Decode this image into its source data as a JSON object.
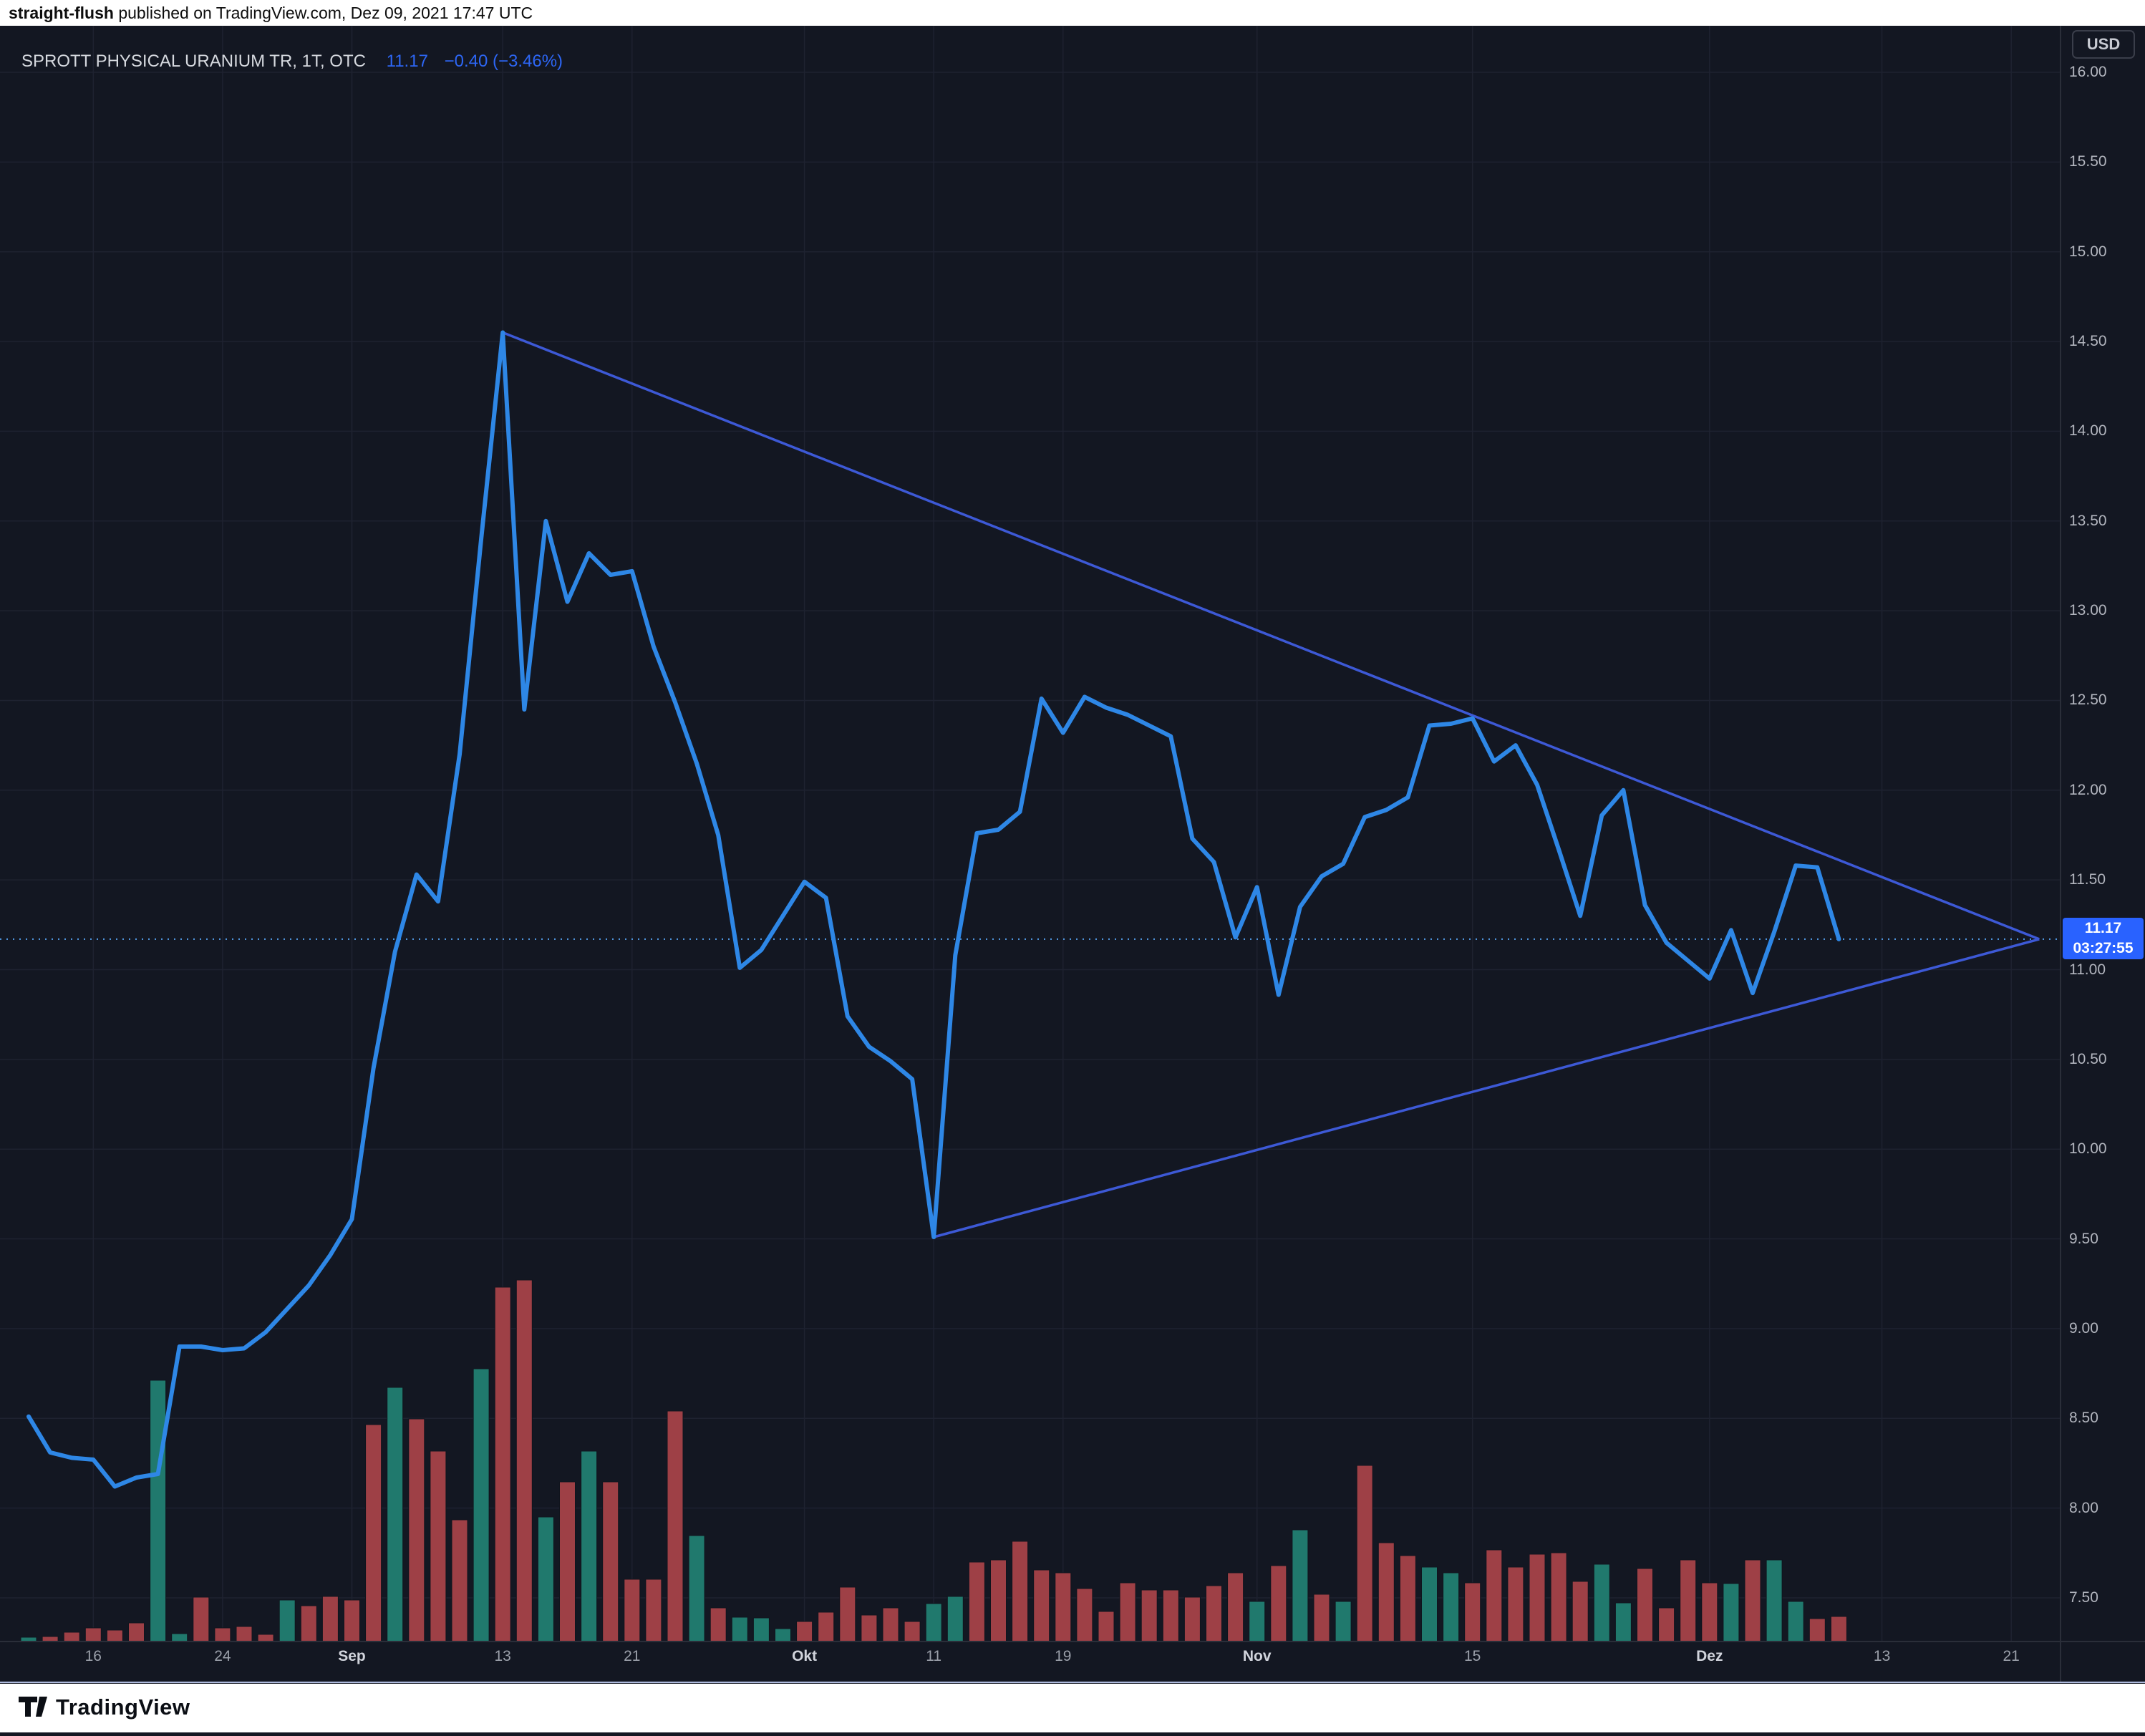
{
  "attribution": {
    "author": "straight-flush",
    "rest": " published on TradingView.com, Dez 09, 2021 17:47 UTC"
  },
  "legend": {
    "title": "SPROTT PHYSICAL URANIUM TR, 1T, OTC",
    "value": "11.17",
    "change": "−0.40 (−3.46%)"
  },
  "price_axis": {
    "currency": "USD",
    "labels": [
      16.0,
      15.5,
      15.0,
      14.5,
      14.0,
      13.5,
      13.0,
      12.5,
      12.0,
      11.5,
      11.0,
      10.5,
      10.0,
      9.5,
      9.0,
      8.5,
      8.0,
      7.5
    ],
    "current": {
      "price": "11.17",
      "countdown": "03:27:55"
    }
  },
  "time_axis": {
    "ticks": [
      {
        "label": "16",
        "index": 3,
        "major": false
      },
      {
        "label": "24",
        "index": 9,
        "major": false
      },
      {
        "label": "Sep",
        "index": 15,
        "major": true
      },
      {
        "label": "13",
        "index": 22,
        "major": false
      },
      {
        "label": "21",
        "index": 28,
        "major": false
      },
      {
        "label": "Okt",
        "index": 36,
        "major": true
      },
      {
        "label": "11",
        "index": 42,
        "major": false
      },
      {
        "label": "19",
        "index": 48,
        "major": false
      },
      {
        "label": "Nov",
        "index": 57,
        "major": true
      },
      {
        "label": "15",
        "index": 67,
        "major": false
      },
      {
        "label": "Dez",
        "index": 78,
        "major": true
      },
      {
        "label": "13",
        "index": 86,
        "major": false
      },
      {
        "label": "21",
        "index": 92,
        "major": false
      }
    ]
  },
  "footer": {
    "brand": "TradingView"
  },
  "colors": {
    "bg": "#131722",
    "grid": "#1e2230",
    "border": "#2a2e39",
    "line": "#2e87e6",
    "trend": "#3d59d6",
    "dotted": "#55a1ef",
    "label_bg": "#2962ff",
    "vol_up": "#20796d",
    "vol_down": "#9e4046",
    "axis_text": "#b2b5be"
  },
  "chart_data": {
    "type": "line",
    "title": "SPROTT PHYSICAL URANIUM TR, 1T, OTC",
    "ylabel": "USD",
    "ylim": [
      7.2,
      16.1
    ],
    "grid": true,
    "current_price": 11.17,
    "previous_close": 11.57,
    "change": -0.4,
    "change_pct": -3.46,
    "trendlines": [
      {
        "name": "descending-resistance",
        "from": {
          "index": 22,
          "price": 14.55
        },
        "to": {
          "index": 93.3,
          "price": 11.17
        }
      },
      {
        "name": "ascending-support",
        "from": {
          "index": 42,
          "price": 9.51
        },
        "to": {
          "index": 93.3,
          "price": 11.17
        }
      }
    ],
    "days": [
      {
        "d": "Aug 11",
        "close": 8.51,
        "vol": 6,
        "dir": "up"
      },
      {
        "d": "Aug 12",
        "close": 8.31,
        "vol": 7,
        "dir": "down"
      },
      {
        "d": "Aug 13",
        "close": 8.28,
        "vol": 13,
        "dir": "down"
      },
      {
        "d": "Aug 16",
        "close": 8.27,
        "vol": 19,
        "dir": "down"
      },
      {
        "d": "Aug 17",
        "close": 8.12,
        "vol": 16,
        "dir": "down"
      },
      {
        "d": "Aug 18",
        "close": 8.17,
        "vol": 26,
        "dir": "down"
      },
      {
        "d": "Aug 19",
        "close": 8.19,
        "vol": 365,
        "dir": "up"
      },
      {
        "d": "Aug 20",
        "close": 8.9,
        "vol": 11,
        "dir": "up"
      },
      {
        "d": "Aug 23",
        "close": 8.9,
        "vol": 62,
        "dir": "down"
      },
      {
        "d": "Aug 24",
        "close": 8.88,
        "vol": 19,
        "dir": "down"
      },
      {
        "d": "Aug 25",
        "close": 8.89,
        "vol": 21,
        "dir": "down"
      },
      {
        "d": "Aug 26",
        "close": 8.98,
        "vol": 10,
        "dir": "down"
      },
      {
        "d": "Aug 27",
        "close": 9.11,
        "vol": 58,
        "dir": "up"
      },
      {
        "d": "Aug 30",
        "close": 9.24,
        "vol": 50,
        "dir": "down"
      },
      {
        "d": "Aug 31",
        "close": 9.41,
        "vol": 63,
        "dir": "down"
      },
      {
        "d": "Sep 1",
        "close": 9.61,
        "vol": 58,
        "dir": "down"
      },
      {
        "d": "Sep 2",
        "close": 10.45,
        "vol": 303,
        "dir": "down"
      },
      {
        "d": "Sep 3",
        "close": 11.1,
        "vol": 355,
        "dir": "up"
      },
      {
        "d": "Sep 7",
        "close": 11.53,
        "vol": 311,
        "dir": "down"
      },
      {
        "d": "Sep 8",
        "close": 11.38,
        "vol": 266,
        "dir": "down"
      },
      {
        "d": "Sep 9",
        "close": 12.2,
        "vol": 170,
        "dir": "down"
      },
      {
        "d": "Sep 10",
        "close": 13.4,
        "vol": 381,
        "dir": "up"
      },
      {
        "d": "Sep 13",
        "close": 14.55,
        "vol": 495,
        "dir": "down"
      },
      {
        "d": "Sep 14",
        "close": 12.45,
        "vol": 505,
        "dir": "down"
      },
      {
        "d": "Sep 15",
        "close": 13.5,
        "vol": 174,
        "dir": "up"
      },
      {
        "d": "Sep 16",
        "close": 13.05,
        "vol": 223,
        "dir": "down"
      },
      {
        "d": "Sep 17",
        "close": 13.32,
        "vol": 266,
        "dir": "up"
      },
      {
        "d": "Sep 20",
        "close": 13.2,
        "vol": 223,
        "dir": "down"
      },
      {
        "d": "Sep 21",
        "close": 13.22,
        "vol": 87,
        "dir": "down"
      },
      {
        "d": "Sep 22",
        "close": 12.8,
        "vol": 87,
        "dir": "down"
      },
      {
        "d": "Sep 23",
        "close": 12.49,
        "vol": 322,
        "dir": "down"
      },
      {
        "d": "Sep 24",
        "close": 12.15,
        "vol": 148,
        "dir": "up"
      },
      {
        "d": "Sep 27",
        "close": 11.75,
        "vol": 47,
        "dir": "down"
      },
      {
        "d": "Sep 28",
        "close": 11.01,
        "vol": 34,
        "dir": "up"
      },
      {
        "d": "Sep 29",
        "close": 11.11,
        "vol": 33,
        "dir": "up"
      },
      {
        "d": "Sep 30",
        "close": 11.3,
        "vol": 18,
        "dir": "up"
      },
      {
        "d": "Okt 1",
        "close": 11.49,
        "vol": 28,
        "dir": "down"
      },
      {
        "d": "Okt 4",
        "close": 11.4,
        "vol": 41,
        "dir": "down"
      },
      {
        "d": "Okt 5",
        "close": 10.74,
        "vol": 76,
        "dir": "down"
      },
      {
        "d": "Okt 6",
        "close": 10.57,
        "vol": 37,
        "dir": "down"
      },
      {
        "d": "Okt 7",
        "close": 10.49,
        "vol": 47,
        "dir": "down"
      },
      {
        "d": "Okt 8",
        "close": 10.39,
        "vol": 28,
        "dir": "down"
      },
      {
        "d": "Okt 11",
        "close": 9.51,
        "vol": 53,
        "dir": "up"
      },
      {
        "d": "Okt 12",
        "close": 11.08,
        "vol": 63,
        "dir": "up"
      },
      {
        "d": "Okt 13",
        "close": 11.76,
        "vol": 111,
        "dir": "down"
      },
      {
        "d": "Okt 14",
        "close": 11.78,
        "vol": 114,
        "dir": "down"
      },
      {
        "d": "Okt 15",
        "close": 11.88,
        "vol": 140,
        "dir": "down"
      },
      {
        "d": "Okt 18",
        "close": 12.51,
        "vol": 100,
        "dir": "down"
      },
      {
        "d": "Okt 19",
        "close": 12.32,
        "vol": 96,
        "dir": "down"
      },
      {
        "d": "Okt 20",
        "close": 12.52,
        "vol": 74,
        "dir": "down"
      },
      {
        "d": "Okt 21",
        "close": 12.46,
        "vol": 42,
        "dir": "down"
      },
      {
        "d": "Okt 22",
        "close": 12.42,
        "vol": 82,
        "dir": "down"
      },
      {
        "d": "Okt 25",
        "close": 12.36,
        "vol": 72,
        "dir": "down"
      },
      {
        "d": "Okt 26",
        "close": 12.3,
        "vol": 72,
        "dir": "down"
      },
      {
        "d": "Okt 27",
        "close": 11.73,
        "vol": 62,
        "dir": "down"
      },
      {
        "d": "Okt 28",
        "close": 11.6,
        "vol": 78,
        "dir": "down"
      },
      {
        "d": "Okt 29",
        "close": 11.18,
        "vol": 96,
        "dir": "down"
      },
      {
        "d": "Nov 1",
        "close": 11.46,
        "vol": 56,
        "dir": "up"
      },
      {
        "d": "Nov 2",
        "close": 10.86,
        "vol": 106,
        "dir": "down"
      },
      {
        "d": "Nov 3",
        "close": 11.35,
        "vol": 156,
        "dir": "up"
      },
      {
        "d": "Nov 4",
        "close": 11.52,
        "vol": 66,
        "dir": "down"
      },
      {
        "d": "Nov 5",
        "close": 11.59,
        "vol": 56,
        "dir": "up"
      },
      {
        "d": "Nov 8",
        "close": 11.85,
        "vol": 246,
        "dir": "down"
      },
      {
        "d": "Nov 9",
        "close": 11.89,
        "vol": 138,
        "dir": "down"
      },
      {
        "d": "Nov 10",
        "close": 11.96,
        "vol": 120,
        "dir": "down"
      },
      {
        "d": "Nov 11",
        "close": 12.36,
        "vol": 104,
        "dir": "up"
      },
      {
        "d": "Nov 12",
        "close": 12.37,
        "vol": 96,
        "dir": "up"
      },
      {
        "d": "Nov 15",
        "close": 12.4,
        "vol": 82,
        "dir": "down"
      },
      {
        "d": "Nov 16",
        "close": 12.16,
        "vol": 128,
        "dir": "down"
      },
      {
        "d": "Nov 17",
        "close": 12.25,
        "vol": 104,
        "dir": "down"
      },
      {
        "d": "Nov 18",
        "close": 12.03,
        "vol": 122,
        "dir": "down"
      },
      {
        "d": "Nov 19",
        "close": 11.67,
        "vol": 124,
        "dir": "down"
      },
      {
        "d": "Nov 22",
        "close": 11.3,
        "vol": 84,
        "dir": "down"
      },
      {
        "d": "Nov 23",
        "close": 11.86,
        "vol": 108,
        "dir": "up"
      },
      {
        "d": "Nov 24",
        "close": 12.0,
        "vol": 54,
        "dir": "up"
      },
      {
        "d": "Nov 26",
        "close": 11.36,
        "vol": 102,
        "dir": "down"
      },
      {
        "d": "Nov 29",
        "close": 11.15,
        "vol": 47,
        "dir": "down"
      },
      {
        "d": "Nov 30",
        "close": 11.05,
        "vol": 114,
        "dir": "down"
      },
      {
        "d": "Dez 1",
        "close": 10.95,
        "vol": 82,
        "dir": "down"
      },
      {
        "d": "Dez 2",
        "close": 11.22,
        "vol": 81,
        "dir": "up"
      },
      {
        "d": "Dez 3",
        "close": 10.87,
        "vol": 114,
        "dir": "down"
      },
      {
        "d": "Dez 6",
        "close": 11.21,
        "vol": 114,
        "dir": "up"
      },
      {
        "d": "Dez 7",
        "close": 11.58,
        "vol": 56,
        "dir": "up"
      },
      {
        "d": "Dez 8",
        "close": 11.57,
        "vol": 32,
        "dir": "down"
      },
      {
        "d": "Dez 9",
        "close": 11.17,
        "vol": 35,
        "dir": "down"
      }
    ],
    "layout": {
      "x0": 40,
      "dx": 30.1,
      "yTop": 101,
      "pMax": 16,
      "pxPerUnit": 250.7,
      "plotRight": 2878,
      "plotTop": 36,
      "volBase": 2293,
      "axisStripBottom": 2350,
      "barWidth": 22
    }
  }
}
